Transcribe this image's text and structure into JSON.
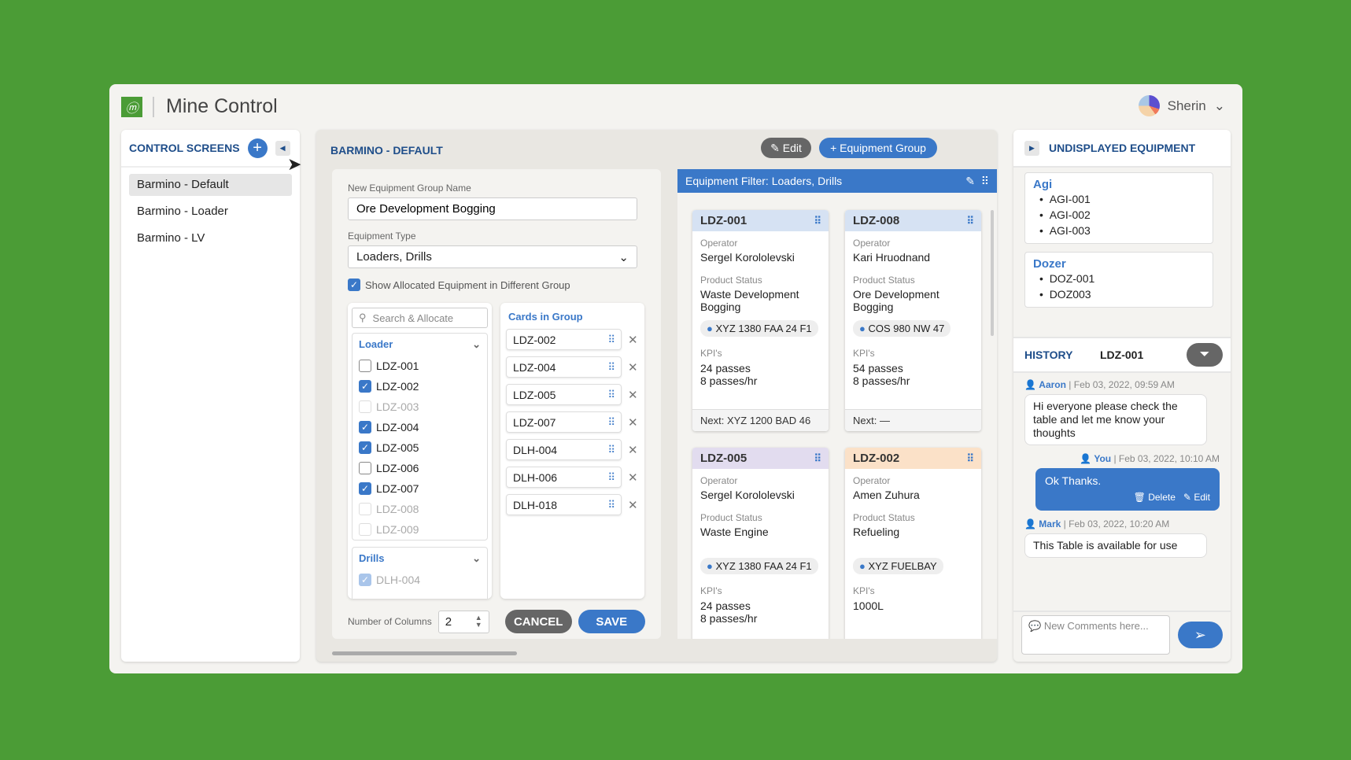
{
  "app": {
    "title": "Mine Control",
    "user": "Sherin"
  },
  "colors": {
    "background": "#4b9c36",
    "accent": "#3a78c8",
    "header_text": "#1f4e8a",
    "cancel": "#666666"
  },
  "sidebar": {
    "title": "CONTROL SCREENS",
    "items": [
      {
        "label": "Barmino - Default",
        "selected": true
      },
      {
        "label": "Barmino - Loader"
      },
      {
        "label": "Barmino - LV"
      }
    ]
  },
  "main": {
    "title": "BARMINO - DEFAULT",
    "edit_label": "Edit",
    "add_group_label": "+ Equipment Group"
  },
  "form": {
    "name_label": "New Equipment Group Name",
    "name_value": "Ore Development Bogging",
    "type_label": "Equipment Type",
    "type_value": "Loaders, Drills",
    "show_allocated_label": "Show Allocated Equipment in Different Group",
    "show_allocated_checked": true,
    "search_placeholder": "Search & Allocate",
    "loader_group": "Loader",
    "loader_items": [
      {
        "id": "LDZ-001",
        "state": "off"
      },
      {
        "id": "LDZ-002",
        "state": "on"
      },
      {
        "id": "LDZ-003",
        "state": "dis"
      },
      {
        "id": "LDZ-004",
        "state": "on"
      },
      {
        "id": "LDZ-005",
        "state": "on"
      },
      {
        "id": "LDZ-006",
        "state": "off"
      },
      {
        "id": "LDZ-007",
        "state": "on"
      },
      {
        "id": "LDZ-008",
        "state": "dis"
      },
      {
        "id": "LDZ-009",
        "state": "dis"
      }
    ],
    "drills_group": "Drills",
    "drills_items": [
      {
        "id": "DLH-004",
        "state": "dis-on"
      }
    ],
    "cards_title": "Cards in Group",
    "cards": [
      "LDZ-002",
      "LDZ-004",
      "LDZ-005",
      "LDZ-007",
      "DLH-004",
      "DLH-006",
      "DLH-018"
    ],
    "columns_label": "Number of Columns",
    "columns_value": "2",
    "cancel_label": "CANCEL",
    "save_label": "SAVE"
  },
  "filter": {
    "title": "Equipment Filter: Loaders, Drills",
    "cards": [
      {
        "id": "LDZ-001",
        "header_color": "#d6e2f3",
        "operator_label": "Operator",
        "operator": "Sergel Korololevski",
        "status_label": "Product Status",
        "status": "Waste Development Bogging",
        "location": "XYZ 1380 FAA 24 F1",
        "kpi_label": "KPI's",
        "kpis": [
          "24 passes",
          "8 passes/hr"
        ],
        "next": "Next: XYZ 1200 BAD 46"
      },
      {
        "id": "LDZ-008",
        "header_color": "#d6e2f3",
        "operator_label": "Operator",
        "operator": "Kari Hruodnand",
        "status_label": "Product Status",
        "status": "Ore Development Bogging",
        "location": "COS 980 NW 47",
        "kpi_label": "KPI's",
        "kpis": [
          "54 passes",
          "8 passes/hr"
        ],
        "next": "Next: —"
      },
      {
        "id": "LDZ-005",
        "header_color": "#e2dcef",
        "operator_label": "Operator",
        "operator": "Sergel Korololevski",
        "status_label": "Product Status",
        "status": "Waste Engine",
        "location": "XYZ 1380 FAA 24 F1",
        "kpi_label": "KPI's",
        "kpis": [
          "24 passes",
          "8 passes/hr"
        ]
      },
      {
        "id": "LDZ-002",
        "header_color": "#fbe1c8",
        "operator_label": "Operator",
        "operator": "Amen Zuhura",
        "status_label": "Product Status",
        "status": "Refueling",
        "location": "XYZ FUELBAY",
        "kpi_label": "KPI's",
        "kpis": [
          "1000L"
        ]
      }
    ]
  },
  "undisplayed": {
    "title": "UNDISPLAYED EQUIPMENT",
    "groups": [
      {
        "name": "Agi",
        "items": [
          "AGI-001",
          "AGI-002",
          "AGI-003"
        ]
      },
      {
        "name": "Dozer",
        "items": [
          "DOZ-001",
          "DOZ003"
        ]
      }
    ]
  },
  "history": {
    "title": "HISTORY",
    "equipment": "LDZ-001",
    "messages": [
      {
        "author": "Aaron",
        "time": "Feb 03, 2022, 09:59 AM",
        "text": "Hi everyone please check the table and let me know your thoughts"
      },
      {
        "author": "You",
        "time": "Feb 03, 2022, 10:10 AM",
        "text": "Ok Thanks.",
        "delete_label": "Delete",
        "edit_label": "Edit"
      },
      {
        "author": "Mark",
        "time": "Feb 03, 2022, 10:20 AM",
        "text": "This Table is available for use"
      }
    ],
    "comment_placeholder": "New Comments here..."
  }
}
